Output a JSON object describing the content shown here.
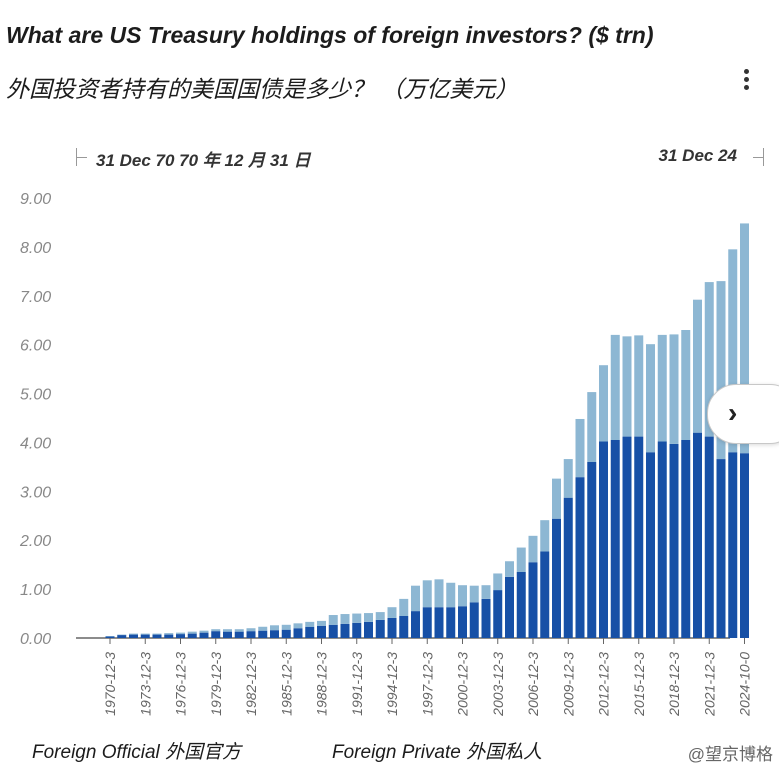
{
  "header": {
    "title": "What are US Treasury holdings of foreign investors? ($ trn)",
    "subtitle": "外国投资者持有的美国国债是多少？ （万亿美元）",
    "menu_icon": "more-vertical-icon"
  },
  "range_selector": {
    "start_label": "31 Dec 70  70 年 12 月 31 日",
    "end_label": "31 Dec 24"
  },
  "next_button": {
    "icon": "chevron-right-icon",
    "glyph": "›"
  },
  "legend": {
    "official_label": "Foreign Official  外国官方",
    "private_label": "Foreign Private  外国私人"
  },
  "watermark": "@望京博格",
  "colors": {
    "official": "#1750a6",
    "private": "#8db7d3",
    "axis": "#666666"
  },
  "chart_data": {
    "type": "bar",
    "stacked": true,
    "ylim": [
      0,
      9
    ],
    "yticks": [
      "0.00",
      "1.00",
      "2.00",
      "3.00",
      "4.00",
      "5.00",
      "6.00",
      "7.00",
      "8.00",
      "9.00"
    ],
    "x_tick_labels": [
      "1970-12-3",
      "1973-12-3",
      "1976-12-3",
      "1979-12-3",
      "1982-12-3",
      "1985-12-3",
      "1988-12-3",
      "1991-12-3",
      "1994-12-3",
      "1997-12-3",
      "2000-12-3",
      "2003-12-3",
      "2006-12-3",
      "2009-12-3",
      "2012-12-3",
      "2015-12-3",
      "2018-12-3",
      "2021-12-3",
      "2024-10-0"
    ],
    "categories": [
      "1970",
      "1971",
      "1972",
      "1973",
      "1974",
      "1975",
      "1976",
      "1977",
      "1978",
      "1979",
      "1980",
      "1981",
      "1982",
      "1983",
      "1984",
      "1985",
      "1986",
      "1987",
      "1988",
      "1989",
      "1990",
      "1991",
      "1992",
      "1993",
      "1994",
      "1995",
      "1996",
      "1997",
      "1998",
      "1999",
      "2000",
      "2001",
      "2002",
      "2003",
      "2004",
      "2005",
      "2006",
      "2007",
      "2008",
      "2009",
      "2010",
      "2011",
      "2012",
      "2013",
      "2014",
      "2015",
      "2016",
      "2017",
      "2018",
      "2019",
      "2020",
      "2021",
      "2022",
      "2023",
      "2024"
    ],
    "series": [
      {
        "name": "Foreign Official  外国官方",
        "values": [
          0.03,
          0.06,
          0.07,
          0.07,
          0.07,
          0.07,
          0.08,
          0.09,
          0.11,
          0.14,
          0.13,
          0.13,
          0.14,
          0.15,
          0.16,
          0.17,
          0.2,
          0.23,
          0.25,
          0.27,
          0.29,
          0.31,
          0.33,
          0.37,
          0.41,
          0.45,
          0.55,
          0.63,
          0.63,
          0.63,
          0.65,
          0.73,
          0.8,
          0.98,
          1.25,
          1.35,
          1.55,
          1.77,
          2.44,
          2.87,
          3.29,
          3.6,
          4.02,
          4.05,
          4.12,
          4.12,
          3.8,
          4.02,
          3.97,
          4.05,
          4.2,
          4.12,
          3.66,
          3.8,
          3.78
        ]
      },
      {
        "name": "Foreign Private  外国私人",
        "values": [
          0.01,
          0.01,
          0.02,
          0.02,
          0.02,
          0.03,
          0.03,
          0.04,
          0.04,
          0.04,
          0.05,
          0.05,
          0.06,
          0.08,
          0.1,
          0.1,
          0.1,
          0.1,
          0.1,
          0.2,
          0.2,
          0.19,
          0.18,
          0.16,
          0.22,
          0.35,
          0.52,
          0.55,
          0.57,
          0.5,
          0.43,
          0.34,
          0.28,
          0.34,
          0.32,
          0.5,
          0.54,
          0.64,
          0.82,
          0.79,
          1.19,
          1.43,
          1.56,
          2.15,
          2.05,
          2.07,
          2.21,
          2.18,
          2.24,
          2.25,
          2.72,
          3.16,
          3.64,
          4.15,
          4.7
        ]
      }
    ],
    "grid": false,
    "legend_position": "bottom"
  }
}
